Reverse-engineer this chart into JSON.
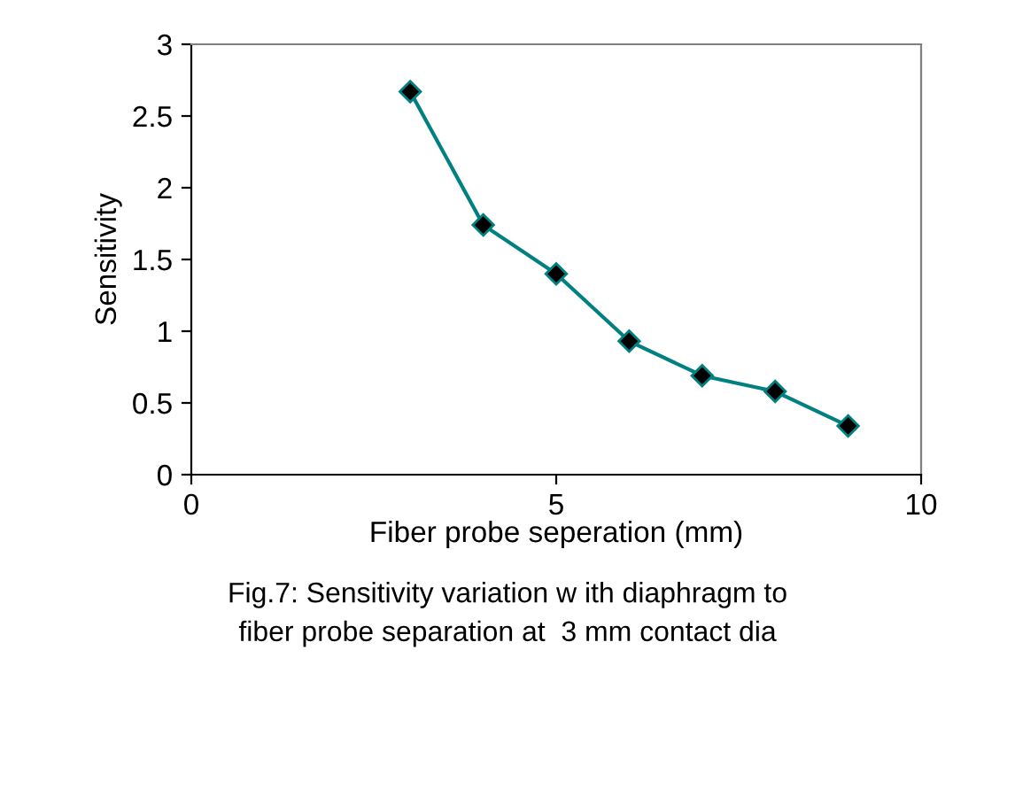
{
  "chart_data": {
    "type": "line",
    "xlabel": "Fiber probe seperation (mm)",
    "ylabel": "Sensitivity",
    "x": [
      3,
      4,
      5,
      6,
      7,
      8,
      9
    ],
    "series": [
      {
        "color": "#008080",
        "values": [
          2.67,
          1.74,
          1.4,
          0.93,
          0.69,
          0.58,
          0.34
        ]
      }
    ],
    "marker": "diamond",
    "line_style": "solid",
    "grid": false,
    "xlim": [
      0,
      10
    ],
    "xticks": [
      0,
      5,
      10
    ],
    "ylim": [
      0,
      3
    ],
    "yticks": [
      0,
      0.5,
      1,
      1.5,
      2,
      2.5,
      3
    ],
    "annotations": [
      "Fig.7: Sensitivity variation w ith diaphragm to\nfiber probe separation at  3 mm contact dia"
    ]
  }
}
